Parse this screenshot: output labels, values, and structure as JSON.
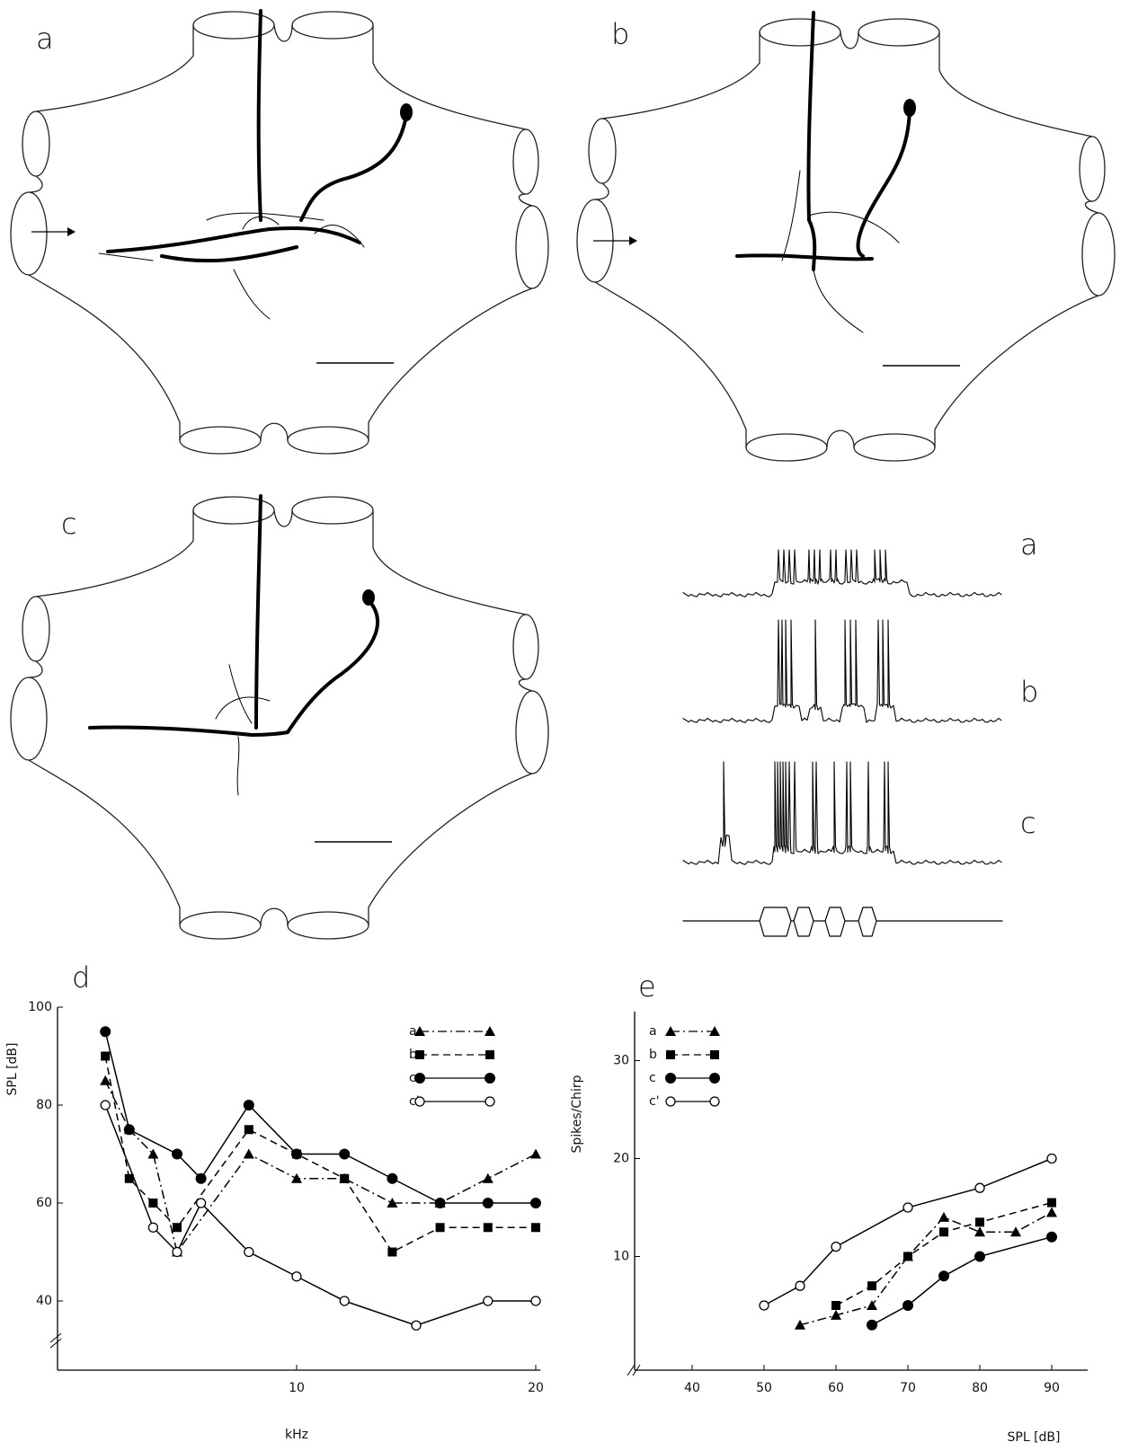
{
  "figure": {
    "panels": [
      "a",
      "b",
      "c"
    ],
    "traces": [
      "a",
      "b",
      "c"
    ]
  },
  "chart_data": [
    {
      "type": "line",
      "label": "d",
      "xlabel": "kHz",
      "ylabel": "SPL [dB]",
      "xlim": [
        0,
        20.2
      ],
      "ylim": [
        33,
        100
      ],
      "xticks": [
        10,
        20
      ],
      "yticks": [
        40,
        60,
        80,
        100
      ],
      "series": [
        {
          "name": "a",
          "color": "#000000",
          "marker": "triangle",
          "dash": "dash-dot",
          "x": [
            2,
            3,
            4,
            5,
            8,
            10,
            12,
            14,
            16,
            18,
            20
          ],
          "values": [
            85,
            75,
            70,
            50,
            70,
            65,
            65,
            60,
            60,
            65,
            70
          ]
        },
        {
          "name": "b",
          "color": "#000000",
          "marker": "square",
          "dash": "dashed",
          "x": [
            2,
            3,
            4,
            5,
            8,
            10,
            12,
            14,
            16,
            18,
            20
          ],
          "values": [
            90,
            65,
            60,
            55,
            75,
            70,
            65,
            50,
            55,
            55,
            55
          ]
        },
        {
          "name": "c",
          "color": "#000000",
          "marker": "circle",
          "dash": "solid",
          "x": [
            2,
            3,
            5,
            6,
            8,
            10,
            12,
            14,
            16,
            18,
            20
          ],
          "values": [
            95,
            75,
            70,
            65,
            80,
            70,
            70,
            65,
            60,
            60,
            60
          ]
        },
        {
          "name": "c'",
          "color": "#000000",
          "marker": "open-circle",
          "dash": "solid",
          "x": [
            2,
            4,
            5,
            6,
            8,
            10,
            12,
            15,
            18,
            20
          ],
          "values": [
            80,
            55,
            50,
            60,
            50,
            45,
            40,
            35,
            40,
            40
          ]
        }
      ]
    },
    {
      "type": "line",
      "label": "e",
      "xlabel": "SPL [dB]",
      "ylabel": "Spikes/Chirp",
      "xlim": [
        32,
        95
      ],
      "ylim": [
        0,
        35
      ],
      "xticks": [
        40,
        50,
        60,
        70,
        80,
        90
      ],
      "yticks": [
        10,
        20,
        30
      ],
      "series": [
        {
          "name": "a",
          "color": "#000000",
          "marker": "triangle",
          "dash": "dash-dot",
          "x": [
            55,
            60,
            65,
            70,
            75,
            80,
            85,
            90
          ],
          "values": [
            3,
            4,
            5,
            10,
            14,
            12.5,
            12.5,
            14.5
          ]
        },
        {
          "name": "b",
          "color": "#000000",
          "marker": "square",
          "dash": "dashed",
          "x": [
            60,
            65,
            70,
            75,
            80,
            90
          ],
          "values": [
            5,
            7,
            10,
            12.5,
            13.5,
            15.5
          ]
        },
        {
          "name": "c",
          "color": "#000000",
          "marker": "circle",
          "dash": "solid",
          "x": [
            65,
            70,
            75,
            80,
            90
          ],
          "values": [
            3,
            5,
            8,
            10,
            12
          ]
        },
        {
          "name": "c'",
          "color": "#000000",
          "marker": "open-circle",
          "dash": "solid",
          "x": [
            50,
            55,
            60,
            70,
            80,
            90
          ],
          "values": [
            5,
            7,
            11,
            15,
            17,
            20
          ]
        }
      ]
    }
  ]
}
